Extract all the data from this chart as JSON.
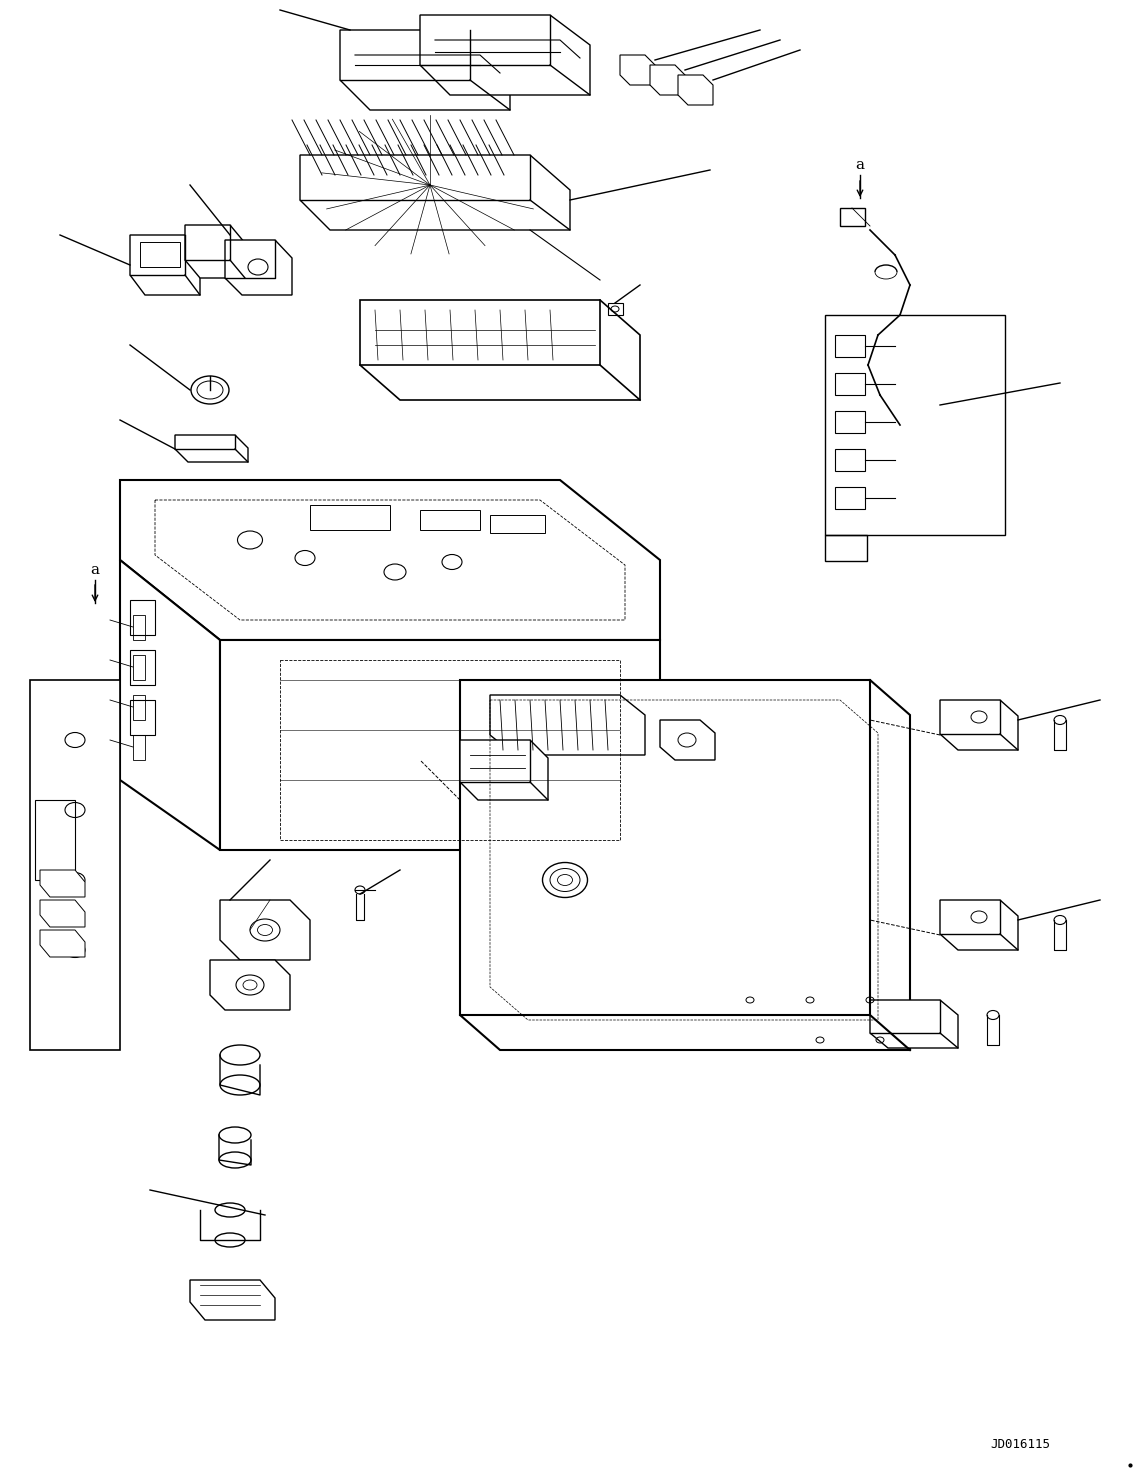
{
  "bg_color": "#ffffff",
  "line_color": "#000000",
  "line_width": 1.0,
  "figure_code": "JD016115",
  "label_a": "a",
  "fig_width": 11.43,
  "fig_height": 14.74,
  "dpi": 100
}
